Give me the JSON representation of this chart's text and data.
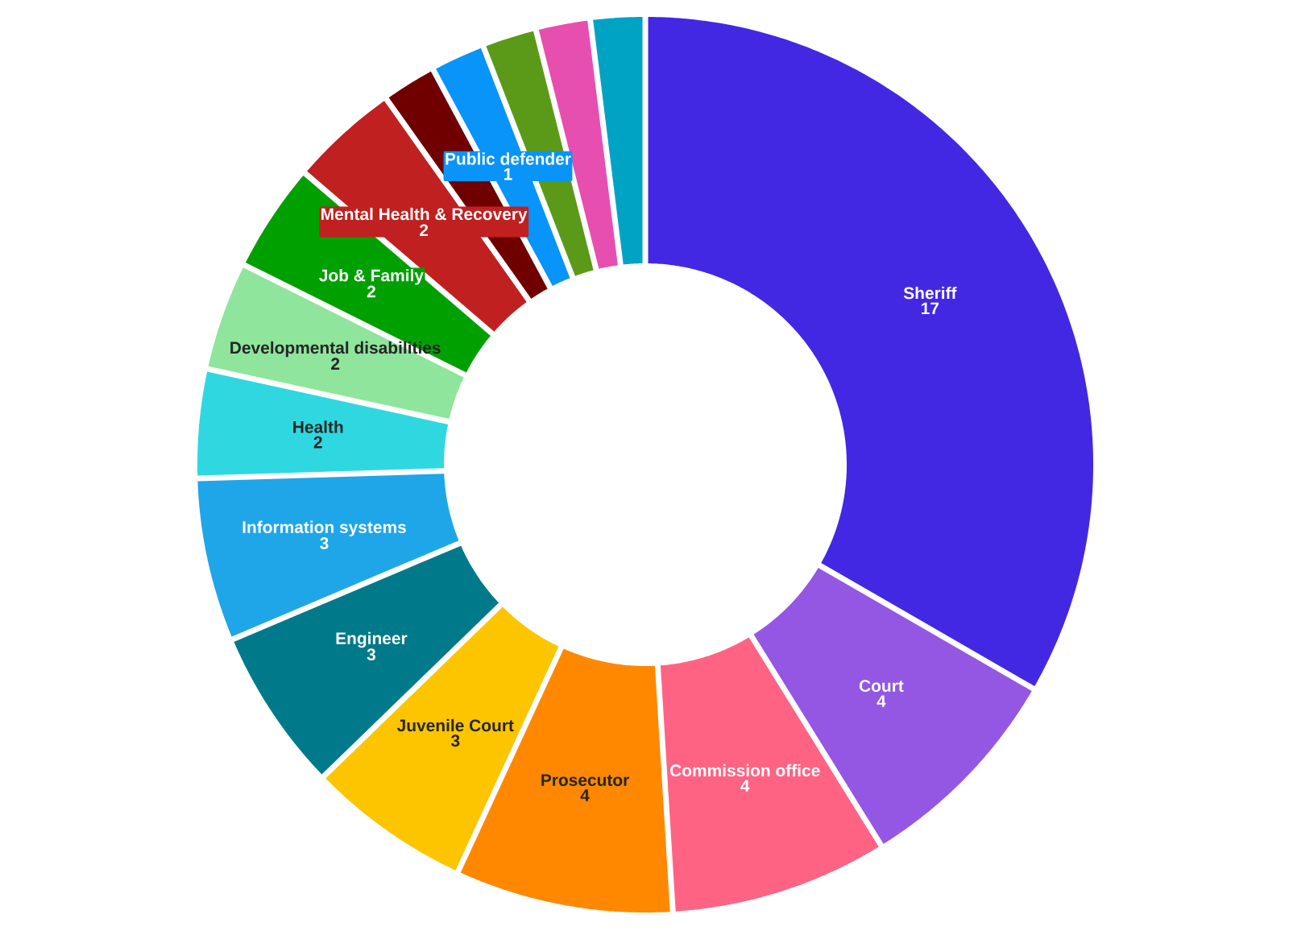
{
  "chart_data": {
    "type": "donut",
    "categories": [
      "Sheriff",
      "Court",
      "Commission office",
      "Prosecutor",
      "Juvenile Court",
      "Engineer",
      "Information systems",
      "Health",
      "Developmental disabilities",
      "Job & Family",
      "Mental Health & Recovery",
      null,
      "Public defender",
      null,
      null,
      null
    ],
    "values": [
      17,
      4,
      4,
      4,
      3,
      3,
      3,
      2,
      2,
      2,
      2,
      1,
      1,
      1,
      1,
      1
    ],
    "value_labels": [
      "17",
      "4",
      "4",
      "4",
      "3",
      "3",
      "3",
      "2",
      "2",
      "2",
      "2",
      null,
      "1",
      null,
      null,
      null
    ],
    "colors": [
      "#4328e3",
      "#9457e3",
      "#ff6384",
      "#ff8800",
      "#fdc500",
      "#007a8a",
      "#1fa6e8",
      "#2fd8e0",
      "#8ee59b",
      "#00a000",
      "#c02020",
      "#700000",
      "#0894f8",
      "#5a9a18",
      "#e64fb0",
      "#00a3c4"
    ]
  }
}
